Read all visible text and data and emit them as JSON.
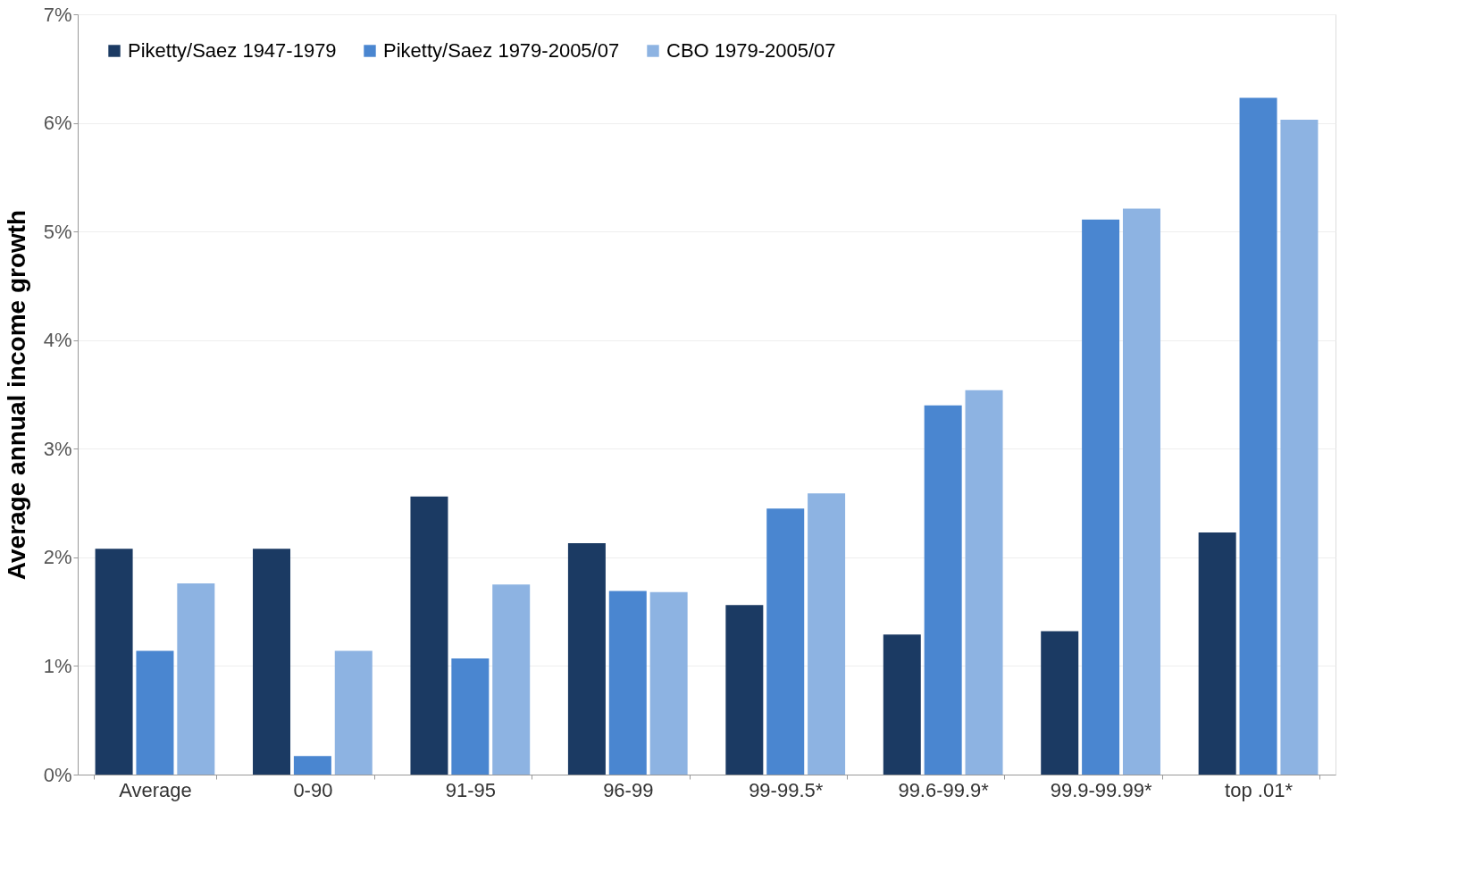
{
  "chart_data": {
    "type": "bar",
    "ylabel": "Average annual income growth",
    "categories": [
      "Average",
      "0-90",
      "91-95",
      "96-99",
      "99-99.5*",
      "99.6-99.9*",
      "99.9-99.99*",
      "top .01*"
    ],
    "series": [
      {
        "name": "Piketty/Saez  1947-1979",
        "color": "#1b3a63",
        "values": [
          2.08,
          2.08,
          2.56,
          2.13,
          1.56,
          1.29,
          1.32,
          2.23
        ]
      },
      {
        "name": "Piketty/Saez  1979-2005/07",
        "color": "#4a86d0",
        "values": [
          1.14,
          0.17,
          1.07,
          1.69,
          2.45,
          3.4,
          5.11,
          6.23
        ]
      },
      {
        "name": "CBO 1979-2005/07",
        "color": "#8db3e2",
        "values": [
          1.76,
          1.14,
          1.75,
          1.68,
          2.59,
          3.54,
          5.21,
          6.03
        ]
      }
    ],
    "ylim": [
      0,
      7
    ],
    "yticks": [
      {
        "value": 0,
        "label": "0%"
      },
      {
        "value": 1,
        "label": "1%"
      },
      {
        "value": 2,
        "label": "2%"
      },
      {
        "value": 3,
        "label": "3%"
      },
      {
        "value": 4,
        "label": "4%"
      },
      {
        "value": 5,
        "label": "5%"
      },
      {
        "value": 6,
        "label": "6%"
      },
      {
        "value": 7,
        "label": "7%"
      }
    ],
    "grid": "y",
    "legend": "top left"
  }
}
